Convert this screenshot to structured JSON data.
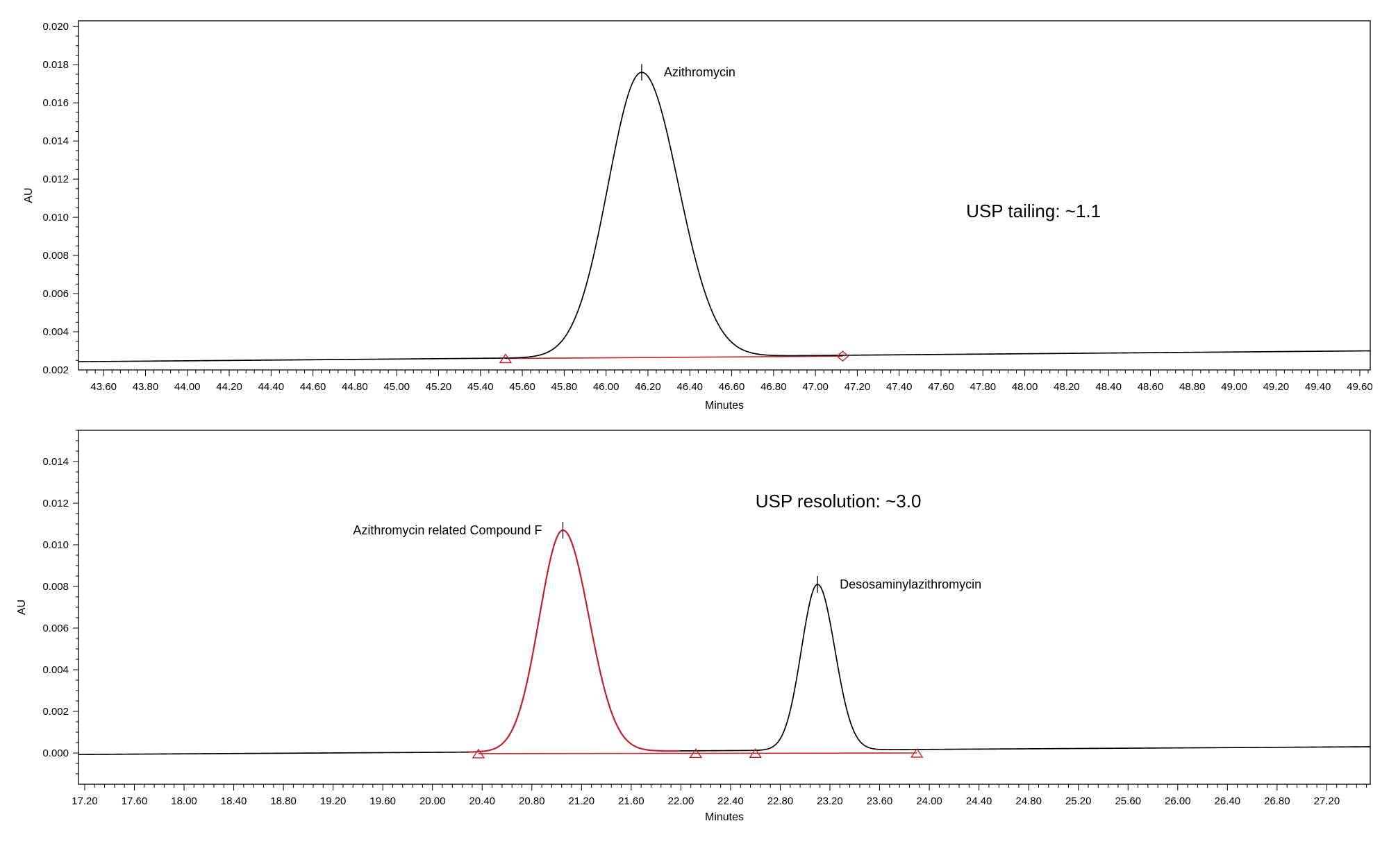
{
  "colors": {
    "trace": "#000000",
    "integration": "#c0232b",
    "frame": "#000000"
  },
  "chart_data": [
    {
      "type": "line",
      "title": "",
      "xlabel": "Minutes",
      "ylabel": "AU",
      "xlim": [
        43.48,
        49.65
      ],
      "ylim": [
        0.002,
        0.0203
      ],
      "xticks": [
        43.6,
        43.8,
        44.0,
        44.2,
        44.4,
        44.6,
        44.8,
        45.0,
        45.2,
        45.4,
        45.6,
        45.8,
        46.0,
        46.2,
        46.4,
        46.6,
        46.8,
        47.0,
        47.2,
        47.4,
        47.6,
        47.8,
        48.0,
        48.2,
        48.4,
        48.6,
        48.8,
        49.0,
        49.2,
        49.4,
        49.6
      ],
      "xtick_labels": [
        "43.60",
        "43.80",
        "44.00",
        "44.20",
        "44.40",
        "44.60",
        "44.80",
        "45.00",
        "45.20",
        "45.40",
        "45.60",
        "45.80",
        "46.00",
        "46.20",
        "46.40",
        "46.60",
        "46.80",
        "47.00",
        "47.20",
        "47.40",
        "47.60",
        "47.80",
        "48.00",
        "48.20",
        "48.40",
        "48.60",
        "48.80",
        "49.00",
        "49.20",
        "49.40",
        "49.60"
      ],
      "yticks": [
        0.002,
        0.004,
        0.006,
        0.008,
        0.01,
        0.012,
        0.014,
        0.016,
        0.018,
        0.02
      ],
      "ytick_labels": [
        "0.002",
        "0.004",
        "0.006",
        "0.008",
        "0.010",
        "0.012",
        "0.014",
        "0.016",
        "0.018",
        "0.020"
      ],
      "baseline": {
        "start": [
          43.48,
          0.00243
        ],
        "end": [
          49.65,
          0.003
        ]
      },
      "peaks": [
        {
          "name": "Azithromycin",
          "rt": 46.17,
          "apex": 0.0176,
          "sigma_left": 0.16,
          "sigma_right": 0.175,
          "highlight": false
        }
      ],
      "integration_line": {
        "start": [
          45.52,
          0.0026
        ],
        "end": [
          47.13,
          0.00272
        ]
      },
      "markers": [
        {
          "shape": "triangle",
          "x": 45.52
        },
        {
          "shape": "diamond",
          "x": 47.13
        }
      ],
      "annotation": {
        "text": "USP tailing: ~1.1",
        "x": 47.72,
        "y": 0.01
      }
    },
    {
      "type": "line",
      "title": "",
      "xlabel": "Minutes",
      "ylabel": "AU",
      "xlim": [
        17.15,
        27.55
      ],
      "ylim": [
        -0.0015,
        0.0155
      ],
      "xticks": [
        17.2,
        17.6,
        18.0,
        18.4,
        18.8,
        19.2,
        19.6,
        20.0,
        20.4,
        20.8,
        21.2,
        21.6,
        22.0,
        22.4,
        22.8,
        23.2,
        23.6,
        24.0,
        24.4,
        24.8,
        25.2,
        25.6,
        26.0,
        26.4,
        26.8,
        27.2
      ],
      "xtick_labels": [
        "17.20",
        "17.60",
        "18.00",
        "18.40",
        "18.80",
        "19.20",
        "19.60",
        "20.00",
        "20.40",
        "20.80",
        "21.20",
        "21.60",
        "22.00",
        "22.40",
        "22.80",
        "23.20",
        "23.60",
        "24.00",
        "24.40",
        "24.80",
        "25.20",
        "25.60",
        "26.00",
        "26.40",
        "26.80",
        "27.20"
      ],
      "yticks": [
        0.0,
        0.002,
        0.004,
        0.006,
        0.008,
        0.01,
        0.012,
        0.014
      ],
      "ytick_labels": [
        "0.000",
        "0.002",
        "0.004",
        "0.006",
        "0.008",
        "0.010",
        "0.012",
        "0.014"
      ],
      "baseline": {
        "start": [
          17.15,
          -7e-05
        ],
        "end": [
          27.55,
          0.0003
        ]
      },
      "peaks": [
        {
          "name": "Azithromycin related Compound F",
          "rt": 21.05,
          "apex": 0.0107,
          "sigma_left": 0.19,
          "sigma_right": 0.21,
          "highlight": true
        },
        {
          "name": "Desosaminylazithromycin",
          "rt": 23.1,
          "apex": 0.0081,
          "sigma_left": 0.13,
          "sigma_right": 0.14,
          "highlight": false
        }
      ],
      "integration_line": {
        "start": [
          20.37,
          -3e-05
        ],
        "end": [
          23.9,
          0.0
        ]
      },
      "markers": [
        {
          "shape": "triangle",
          "x": 20.37
        },
        {
          "shape": "triangle",
          "x": 22.12
        },
        {
          "shape": "triangle",
          "x": 22.6
        },
        {
          "shape": "triangle",
          "x": 23.9
        }
      ],
      "annotation": {
        "text": "USP resolution: ~3.0",
        "x": 22.6,
        "y": 0.0118
      }
    }
  ]
}
